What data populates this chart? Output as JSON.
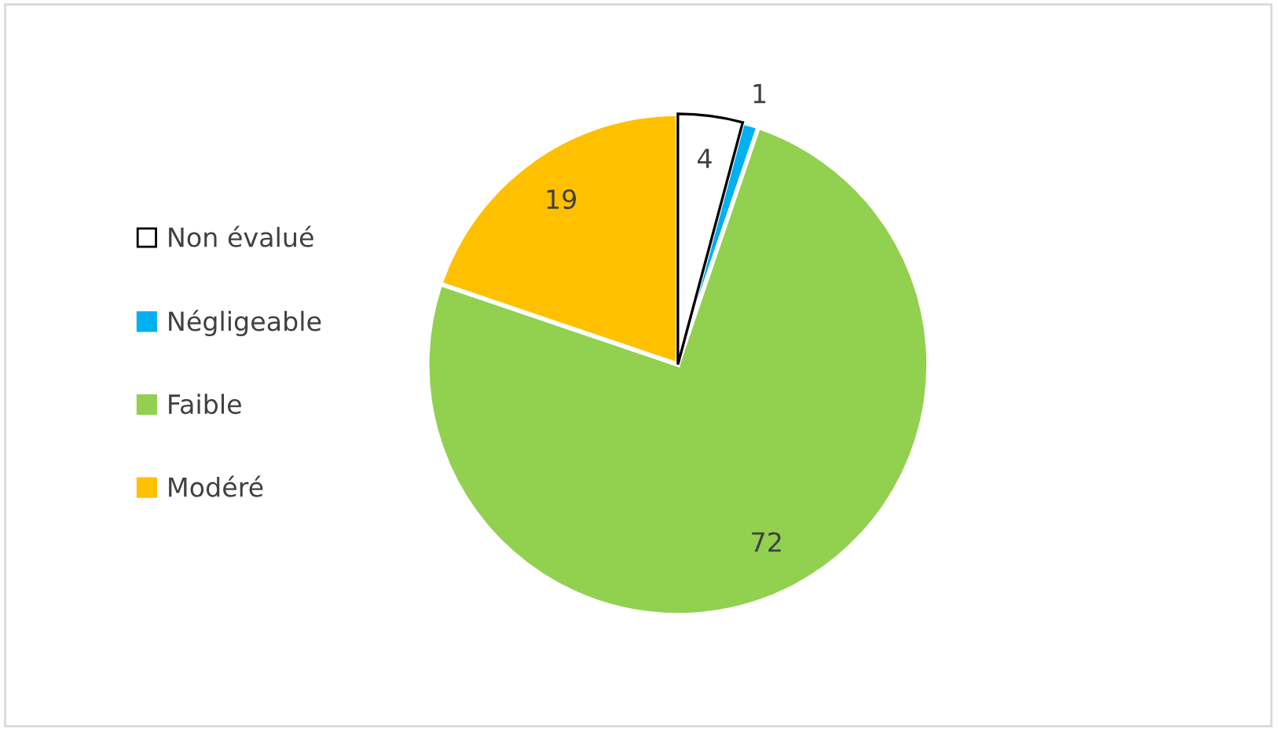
{
  "chart_data": {
    "type": "pie",
    "categories": [
      "Non évalué",
      "Négligeable",
      "Faible",
      "Modéré"
    ],
    "values": [
      4,
      1,
      72,
      19
    ],
    "colors": [
      "#ffffff",
      "#00b0f0",
      "#92d050",
      "#ffc000"
    ],
    "data_labels": true,
    "legend": "left"
  }
}
